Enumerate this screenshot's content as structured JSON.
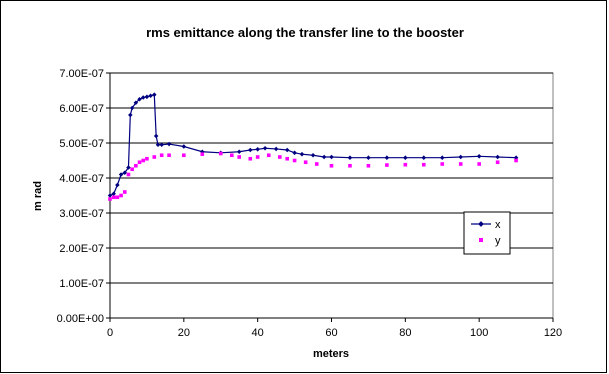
{
  "chart_data": {
    "type": "line",
    "title": "rms emittance along the transfer line to the booster",
    "xlabel": "meters",
    "ylabel": "m rad",
    "xlim": [
      0,
      120
    ],
    "ylim": [
      0,
      7e-07
    ],
    "xticks": [
      "0",
      "20",
      "40",
      "60",
      "80",
      "100",
      "120"
    ],
    "yticks": [
      "0.00E+00",
      "1.00E-07",
      "2.00E-07",
      "3.00E-07",
      "4.00E-07",
      "5.00E-07",
      "6.00E-07",
      "7.00E-07"
    ],
    "grid": "horizontal",
    "legend_position": "right",
    "series": [
      {
        "name": "x",
        "color": "#000080",
        "marker": "diamond",
        "x": [
          0,
          1,
          2,
          3,
          4,
          5,
          5.5,
          6,
          7,
          8,
          9,
          10,
          11,
          12,
          12.5,
          13,
          14,
          16,
          20,
          25,
          30,
          35,
          38,
          40,
          42,
          45,
          48,
          50,
          52,
          55,
          58,
          60,
          65,
          70,
          75,
          80,
          85,
          90,
          95,
          100,
          105,
          110
        ],
        "y": [
          3.5e-07,
          3.55e-07,
          3.8e-07,
          4.1e-07,
          4.15e-07,
          4.3e-07,
          5.8e-07,
          6e-07,
          6.15e-07,
          6.25e-07,
          6.3e-07,
          6.32e-07,
          6.35e-07,
          6.38e-07,
          5.2e-07,
          4.95e-07,
          4.95e-07,
          4.97e-07,
          4.9e-07,
          4.75e-07,
          4.72e-07,
          4.75e-07,
          4.8e-07,
          4.82e-07,
          4.85e-07,
          4.83e-07,
          4.8e-07,
          4.72e-07,
          4.68e-07,
          4.65e-07,
          4.6e-07,
          4.6e-07,
          4.58e-07,
          4.58e-07,
          4.58e-07,
          4.58e-07,
          4.58e-07,
          4.58e-07,
          4.6e-07,
          4.62e-07,
          4.6e-07,
          4.58e-07
        ]
      },
      {
        "name": "y",
        "color": "#ff00ff",
        "marker": "square",
        "x": [
          0,
          1,
          2,
          3,
          4,
          5,
          6,
          7,
          8,
          9,
          10,
          12,
          14,
          16,
          20,
          25,
          30,
          33,
          35,
          38,
          40,
          43,
          46,
          48,
          50,
          53,
          56,
          60,
          65,
          70,
          75,
          80,
          85,
          90,
          95,
          100,
          105,
          110
        ],
        "y": [
          3.4e-07,
          3.45e-07,
          3.45e-07,
          3.5e-07,
          3.6e-07,
          4.1e-07,
          4.25e-07,
          4.35e-07,
          4.45e-07,
          4.5e-07,
          4.55e-07,
          4.6e-07,
          4.65e-07,
          4.65e-07,
          4.65e-07,
          4.68e-07,
          4.7e-07,
          4.65e-07,
          4.6e-07,
          4.55e-07,
          4.6e-07,
          4.65e-07,
          4.6e-07,
          4.55e-07,
          4.5e-07,
          4.45e-07,
          4.4e-07,
          4.35e-07,
          4.35e-07,
          4.35e-07,
          4.37e-07,
          4.38e-07,
          4.38e-07,
          4.4e-07,
          4.4e-07,
          4.4e-07,
          4.45e-07,
          4.5e-07
        ]
      }
    ]
  }
}
